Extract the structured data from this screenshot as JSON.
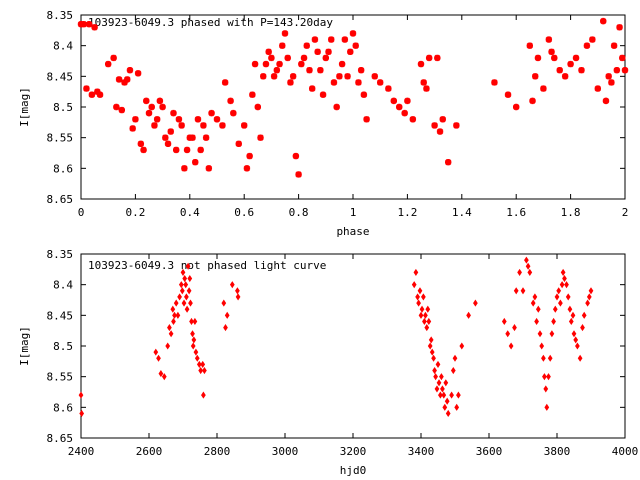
{
  "chart_data": [
    {
      "type": "scatter",
      "title": "103923-6049.3 phased with P=143.20day",
      "xlabel": "phase",
      "ylabel": "I[mag]",
      "xlim": [
        0,
        2
      ],
      "ylim": [
        8.65,
        8.35
      ],
      "y_inverted": true,
      "grid": false,
      "marker": "star",
      "color": "#ff0000",
      "x_ticks": [
        "0",
        "0.2",
        "0.4",
        "0.6",
        "0.8",
        "1",
        "1.2",
        "1.4",
        "1.6",
        "1.8",
        "2"
      ],
      "y_ticks": [
        "8.35",
        "8.4",
        "8.45",
        "8.5",
        "8.55",
        "8.6",
        "8.65"
      ],
      "points": [
        [
          0.0,
          8.365
        ],
        [
          0.01,
          8.365
        ],
        [
          0.02,
          8.47
        ],
        [
          0.03,
          8.365
        ],
        [
          0.04,
          8.48
        ],
        [
          0.05,
          8.37
        ],
        [
          0.06,
          8.475
        ],
        [
          0.07,
          8.48
        ],
        [
          0.1,
          8.43
        ],
        [
          0.12,
          8.42
        ],
        [
          0.13,
          8.5
        ],
        [
          0.14,
          8.455
        ],
        [
          0.15,
          8.505
        ],
        [
          0.16,
          8.46
        ],
        [
          0.17,
          8.455
        ],
        [
          0.18,
          8.44
        ],
        [
          0.19,
          8.535
        ],
        [
          0.2,
          8.52
        ],
        [
          0.21,
          8.445
        ],
        [
          0.22,
          8.56
        ],
        [
          0.23,
          8.57
        ],
        [
          0.24,
          8.49
        ],
        [
          0.25,
          8.51
        ],
        [
          0.26,
          8.5
        ],
        [
          0.27,
          8.53
        ],
        [
          0.28,
          8.52
        ],
        [
          0.29,
          8.49
        ],
        [
          0.3,
          8.5
        ],
        [
          0.31,
          8.55
        ],
        [
          0.32,
          8.56
        ],
        [
          0.33,
          8.54
        ],
        [
          0.34,
          8.51
        ],
        [
          0.35,
          8.57
        ],
        [
          0.36,
          8.52
        ],
        [
          0.37,
          8.53
        ],
        [
          0.38,
          8.6
        ],
        [
          0.39,
          8.57
        ],
        [
          0.4,
          8.55
        ],
        [
          0.41,
          8.55
        ],
        [
          0.42,
          8.59
        ],
        [
          0.43,
          8.52
        ],
        [
          0.44,
          8.57
        ],
        [
          0.45,
          8.53
        ],
        [
          0.46,
          8.55
        ],
        [
          0.47,
          8.6
        ],
        [
          0.48,
          8.51
        ],
        [
          0.5,
          8.52
        ],
        [
          0.52,
          8.53
        ],
        [
          0.53,
          8.46
        ],
        [
          0.55,
          8.49
        ],
        [
          0.56,
          8.51
        ],
        [
          0.58,
          8.56
        ],
        [
          0.6,
          8.53
        ],
        [
          0.61,
          8.6
        ],
        [
          0.62,
          8.58
        ],
        [
          0.63,
          8.48
        ],
        [
          0.64,
          8.43
        ],
        [
          0.65,
          8.5
        ],
        [
          0.66,
          8.55
        ],
        [
          0.67,
          8.45
        ],
        [
          0.68,
          8.43
        ],
        [
          0.69,
          8.41
        ],
        [
          0.7,
          8.42
        ],
        [
          0.71,
          8.45
        ],
        [
          0.72,
          8.44
        ],
        [
          0.73,
          8.43
        ],
        [
          0.74,
          8.4
        ],
        [
          0.75,
          8.38
        ],
        [
          0.76,
          8.42
        ],
        [
          0.77,
          8.46
        ],
        [
          0.78,
          8.45
        ],
        [
          0.79,
          8.58
        ],
        [
          0.8,
          8.61
        ],
        [
          0.81,
          8.43
        ],
        [
          0.82,
          8.42
        ],
        [
          0.83,
          8.4
        ],
        [
          0.84,
          8.44
        ],
        [
          0.85,
          8.47
        ],
        [
          0.86,
          8.39
        ],
        [
          0.87,
          8.41
        ],
        [
          0.88,
          8.44
        ],
        [
          0.89,
          8.48
        ],
        [
          0.9,
          8.42
        ],
        [
          0.91,
          8.41
        ],
        [
          0.92,
          8.39
        ],
        [
          0.93,
          8.46
        ],
        [
          0.94,
          8.5
        ],
        [
          0.95,
          8.45
        ],
        [
          0.96,
          8.43
        ],
        [
          0.97,
          8.39
        ],
        [
          0.98,
          8.45
        ],
        [
          0.99,
          8.41
        ],
        [
          1.0,
          8.38
        ],
        [
          1.01,
          8.4
        ],
        [
          1.02,
          8.46
        ],
        [
          1.03,
          8.44
        ],
        [
          1.04,
          8.48
        ],
        [
          1.05,
          8.52
        ],
        [
          1.08,
          8.45
        ],
        [
          1.1,
          8.46
        ],
        [
          1.13,
          8.47
        ],
        [
          1.15,
          8.49
        ],
        [
          1.17,
          8.5
        ],
        [
          1.19,
          8.51
        ],
        [
          1.2,
          8.49
        ],
        [
          1.22,
          8.52
        ],
        [
          1.25,
          8.43
        ],
        [
          1.26,
          8.46
        ],
        [
          1.27,
          8.47
        ],
        [
          1.28,
          8.42
        ],
        [
          1.3,
          8.53
        ],
        [
          1.31,
          8.42
        ],
        [
          1.32,
          8.54
        ],
        [
          1.33,
          8.52
        ],
        [
          1.35,
          8.59
        ],
        [
          1.38,
          8.53
        ],
        [
          1.52,
          8.46
        ],
        [
          1.57,
          8.48
        ],
        [
          1.6,
          8.5
        ],
        [
          1.65,
          8.4
        ],
        [
          1.66,
          8.49
        ],
        [
          1.67,
          8.45
        ],
        [
          1.68,
          8.42
        ],
        [
          1.7,
          8.47
        ],
        [
          1.72,
          8.39
        ],
        [
          1.73,
          8.41
        ],
        [
          1.74,
          8.42
        ],
        [
          1.76,
          8.44
        ],
        [
          1.78,
          8.45
        ],
        [
          1.8,
          8.43
        ],
        [
          1.82,
          8.42
        ],
        [
          1.84,
          8.44
        ],
        [
          1.86,
          8.4
        ],
        [
          1.88,
          8.39
        ],
        [
          1.9,
          8.47
        ],
        [
          1.92,
          8.36
        ],
        [
          1.93,
          8.49
        ],
        [
          1.94,
          8.45
        ],
        [
          1.95,
          8.46
        ],
        [
          1.96,
          8.4
        ],
        [
          1.97,
          8.44
        ],
        [
          1.98,
          8.37
        ],
        [
          1.99,
          8.42
        ],
        [
          2.0,
          8.44
        ]
      ]
    },
    {
      "type": "scatter",
      "title": "103923-6049.3 not phased light curve",
      "xlabel": "hjd0",
      "ylabel": "I[mag]",
      "xlim": [
        2400,
        4000
      ],
      "ylim": [
        8.65,
        8.35
      ],
      "y_inverted": true,
      "grid": false,
      "marker": "diamond",
      "color": "#ff0000",
      "x_ticks": [
        "2400",
        "2600",
        "2800",
        "3000",
        "3200",
        "3400",
        "3600",
        "3800",
        "4000"
      ],
      "y_ticks": [
        "8.35",
        "8.4",
        "8.45",
        "8.5",
        "8.55",
        "8.6",
        "8.65"
      ],
      "points": [
        [
          2400,
          8.58
        ],
        [
          2402,
          8.61
        ],
        [
          2620,
          8.51
        ],
        [
          2628,
          8.52
        ],
        [
          2635,
          8.545
        ],
        [
          2645,
          8.55
        ],
        [
          2655,
          8.5
        ],
        [
          2660,
          8.47
        ],
        [
          2665,
          8.48
        ],
        [
          2670,
          8.44
        ],
        [
          2672,
          8.46
        ],
        [
          2675,
          8.45
        ],
        [
          2680,
          8.43
        ],
        [
          2685,
          8.45
        ],
        [
          2690,
          8.42
        ],
        [
          2695,
          8.4
        ],
        [
          2698,
          8.41
        ],
        [
          2700,
          8.38
        ],
        [
          2703,
          8.43
        ],
        [
          2705,
          8.39
        ],
        [
          2708,
          8.4
        ],
        [
          2710,
          8.42
        ],
        [
          2712,
          8.44
        ],
        [
          2715,
          8.37
        ],
        [
          2718,
          8.41
        ],
        [
          2720,
          8.39
        ],
        [
          2722,
          8.43
        ],
        [
          2725,
          8.46
        ],
        [
          2728,
          8.48
        ],
        [
          2730,
          8.5
        ],
        [
          2732,
          8.49
        ],
        [
          2735,
          8.46
        ],
        [
          2738,
          8.51
        ],
        [
          2742,
          8.52
        ],
        [
          2748,
          8.53
        ],
        [
          2752,
          8.54
        ],
        [
          2758,
          8.53
        ],
        [
          2760,
          8.58
        ],
        [
          2763,
          8.54
        ],
        [
          2820,
          8.43
        ],
        [
          2825,
          8.47
        ],
        [
          2830,
          8.45
        ],
        [
          2845,
          8.4
        ],
        [
          2860,
          8.41
        ],
        [
          2862,
          8.42
        ],
        [
          3380,
          8.4
        ],
        [
          3385,
          8.38
        ],
        [
          3390,
          8.42
        ],
        [
          3393,
          8.43
        ],
        [
          3397,
          8.41
        ],
        [
          3400,
          8.45
        ],
        [
          3403,
          8.44
        ],
        [
          3407,
          8.42
        ],
        [
          3410,
          8.46
        ],
        [
          3413,
          8.45
        ],
        [
          3417,
          8.47
        ],
        [
          3420,
          8.44
        ],
        [
          3423,
          8.46
        ],
        [
          3427,
          8.5
        ],
        [
          3430,
          8.49
        ],
        [
          3433,
          8.51
        ],
        [
          3437,
          8.52
        ],
        [
          3440,
          8.54
        ],
        [
          3443,
          8.55
        ],
        [
          3447,
          8.57
        ],
        [
          3450,
          8.53
        ],
        [
          3453,
          8.56
        ],
        [
          3457,
          8.58
        ],
        [
          3460,
          8.55
        ],
        [
          3463,
          8.57
        ],
        [
          3467,
          8.58
        ],
        [
          3470,
          8.6
        ],
        [
          3473,
          8.56
        ],
        [
          3477,
          8.59
        ],
        [
          3480,
          8.61
        ],
        [
          3490,
          8.58
        ],
        [
          3495,
          8.54
        ],
        [
          3500,
          8.52
        ],
        [
          3505,
          8.6
        ],
        [
          3510,
          8.58
        ],
        [
          3520,
          8.5
        ],
        [
          3540,
          8.45
        ],
        [
          3560,
          8.43
        ],
        [
          3645,
          8.46
        ],
        [
          3655,
          8.48
        ],
        [
          3665,
          8.5
        ],
        [
          3675,
          8.47
        ],
        [
          3680,
          8.41
        ],
        [
          3690,
          8.38
        ],
        [
          3700,
          8.41
        ],
        [
          3710,
          8.36
        ],
        [
          3715,
          8.37
        ],
        [
          3720,
          8.38
        ],
        [
          3730,
          8.43
        ],
        [
          3735,
          8.42
        ],
        [
          3740,
          8.46
        ],
        [
          3745,
          8.44
        ],
        [
          3750,
          8.48
        ],
        [
          3755,
          8.5
        ],
        [
          3760,
          8.52
        ],
        [
          3763,
          8.55
        ],
        [
          3767,
          8.57
        ],
        [
          3770,
          8.6
        ],
        [
          3775,
          8.55
        ],
        [
          3780,
          8.52
        ],
        [
          3785,
          8.48
        ],
        [
          3790,
          8.46
        ],
        [
          3795,
          8.44
        ],
        [
          3800,
          8.42
        ],
        [
          3805,
          8.41
        ],
        [
          3810,
          8.43
        ],
        [
          3815,
          8.4
        ],
        [
          3818,
          8.38
        ],
        [
          3822,
          8.39
        ],
        [
          3828,
          8.4
        ],
        [
          3833,
          8.42
        ],
        [
          3838,
          8.44
        ],
        [
          3842,
          8.46
        ],
        [
          3847,
          8.45
        ],
        [
          3850,
          8.48
        ],
        [
          3855,
          8.49
        ],
        [
          3860,
          8.5
        ],
        [
          3868,
          8.52
        ],
        [
          3875,
          8.47
        ],
        [
          3880,
          8.45
        ],
        [
          3890,
          8.43
        ],
        [
          3895,
          8.42
        ],
        [
          3900,
          8.41
        ]
      ]
    }
  ]
}
